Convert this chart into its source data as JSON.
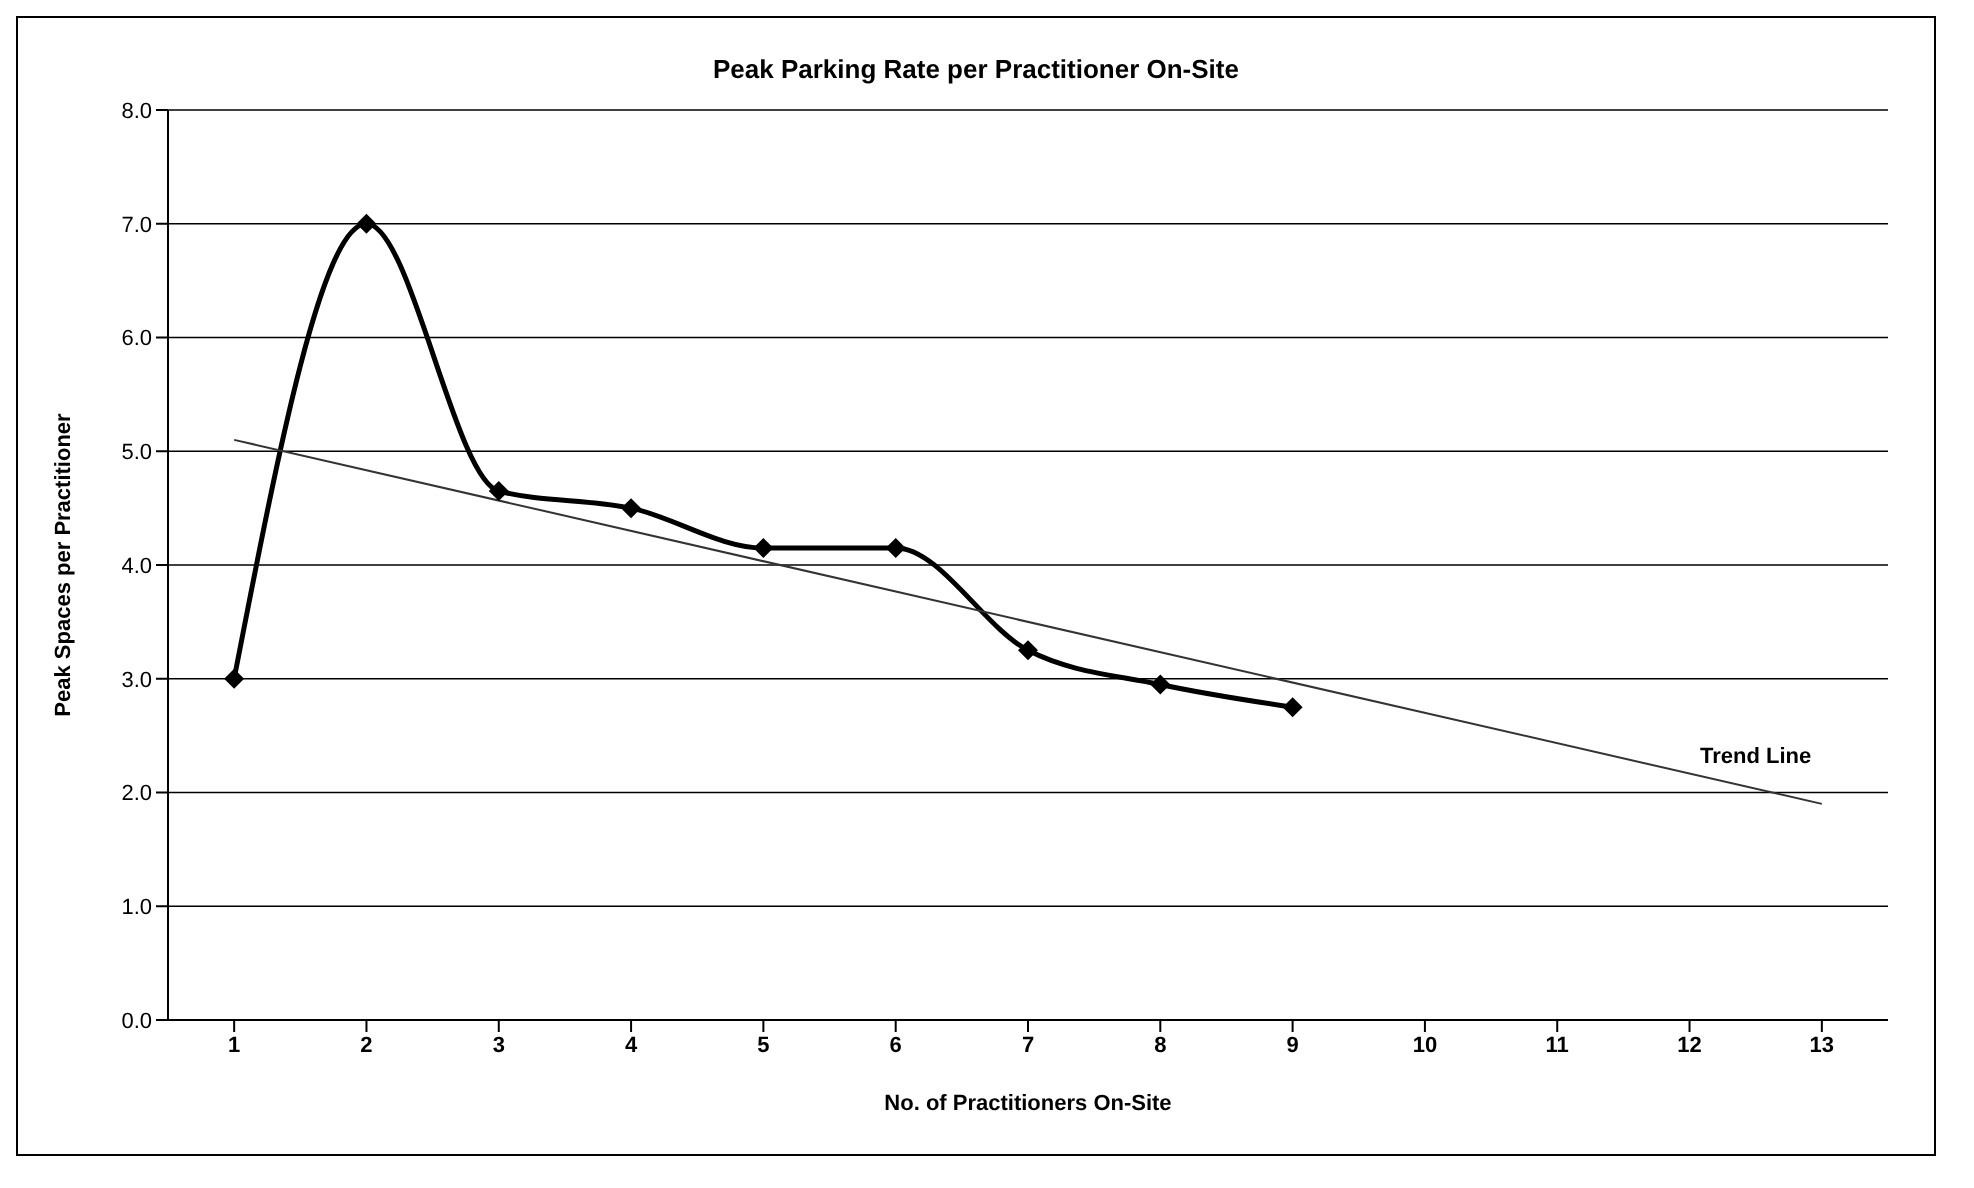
{
  "chart_data": {
    "type": "line",
    "title": "Peak Parking Rate per Practitioner On-Site",
    "xlabel": "No. of Practitioners On-Site",
    "ylabel": "Peak Spaces per Practitioner",
    "x": [
      1,
      2,
      3,
      4,
      5,
      6,
      7,
      8,
      9
    ],
    "series": [
      {
        "color": "#000000",
        "values": [
          3.0,
          7.0,
          4.65,
          4.5,
          4.15,
          4.15,
          3.25,
          2.95,
          2.75
        ],
        "marker": "diamond"
      },
      {
        "type": "line",
        "color": "#333333",
        "x": [
          1,
          13
        ],
        "values": [
          5.1,
          1.9
        ],
        "marker": "none"
      }
    ],
    "annotations": [
      {
        "text": "Trend Line",
        "x": 12.5,
        "y": 2.05
      }
    ],
    "xlim": [
      0.5,
      13.5
    ],
    "xticks": [
      1,
      2,
      3,
      4,
      5,
      6,
      7,
      8,
      9,
      10,
      11,
      12,
      13
    ],
    "ylim": [
      0,
      8
    ],
    "yticks": [
      {
        "value": 0,
        "label": "0.0"
      },
      {
        "value": 1,
        "label": "1.0"
      },
      {
        "value": 2,
        "label": "2.0"
      },
      {
        "value": 3,
        "label": "3.0"
      },
      {
        "value": 4,
        "label": "4.0"
      },
      {
        "value": 5,
        "label": "5.0"
      },
      {
        "value": 6,
        "label": "6.0"
      },
      {
        "value": 7,
        "label": "7.0"
      },
      {
        "value": 8,
        "label": "8.0"
      }
    ],
    "grid": "y",
    "line_style": "solid"
  }
}
